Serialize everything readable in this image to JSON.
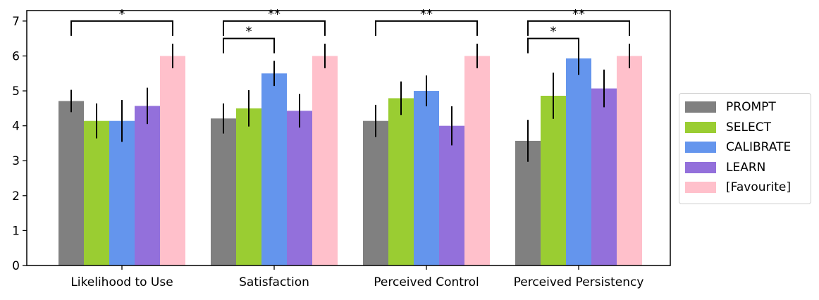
{
  "chart_data": {
    "type": "bar",
    "title": "",
    "xlabel": "",
    "ylabel": "",
    "ylim": [
      0,
      7.3
    ],
    "yticks": [
      0,
      1,
      2,
      3,
      4,
      5,
      6,
      7
    ],
    "categories": [
      "Likelihood to Use",
      "Satisfaction",
      "Perceived Control",
      "Perceived Persistency"
    ],
    "series": [
      {
        "name": "PROMPT",
        "color": "#808080",
        "values": [
          4.71,
          4.21,
          4.14,
          3.57
        ],
        "errors": [
          0.32,
          0.43,
          0.46,
          0.6
        ]
      },
      {
        "name": "SELECT",
        "color": "#9acd32",
        "values": [
          4.14,
          4.5,
          4.79,
          4.86
        ],
        "errors": [
          0.5,
          0.52,
          0.48,
          0.66
        ]
      },
      {
        "name": "CALIBRATE",
        "color": "#6495ed",
        "values": [
          4.14,
          5.5,
          5.0,
          5.93
        ],
        "errors": [
          0.6,
          0.36,
          0.44,
          0.47
        ]
      },
      {
        "name": "LEARN",
        "color": "#9370db",
        "values": [
          4.57,
          4.43,
          4.0,
          5.07
        ],
        "errors": [
          0.52,
          0.48,
          0.56,
          0.54
        ]
      },
      {
        "name": "[Favourite]",
        "color": "#ffc0cb",
        "values": [
          6.0,
          6.0,
          6.0,
          6.0
        ],
        "errors": [
          0.35,
          0.35,
          0.35,
          0.35
        ]
      }
    ],
    "legend_position": "right",
    "grid": false,
    "significance": [
      {
        "category": 0,
        "from_series": 0,
        "to_series": 4,
        "label": "*",
        "level": 7.0
      },
      {
        "category": 1,
        "from_series": 0,
        "to_series": 4,
        "label": "**",
        "level": 7.0
      },
      {
        "category": 1,
        "from_series": 0,
        "to_series": 2,
        "label": "*",
        "level": 6.5
      },
      {
        "category": 2,
        "from_series": 0,
        "to_series": 4,
        "label": "**",
        "level": 7.0
      },
      {
        "category": 3,
        "from_series": 0,
        "to_series": 4,
        "label": "**",
        "level": 7.0
      },
      {
        "category": 3,
        "from_series": 0,
        "to_series": 2,
        "label": "*",
        "level": 6.5
      }
    ]
  }
}
